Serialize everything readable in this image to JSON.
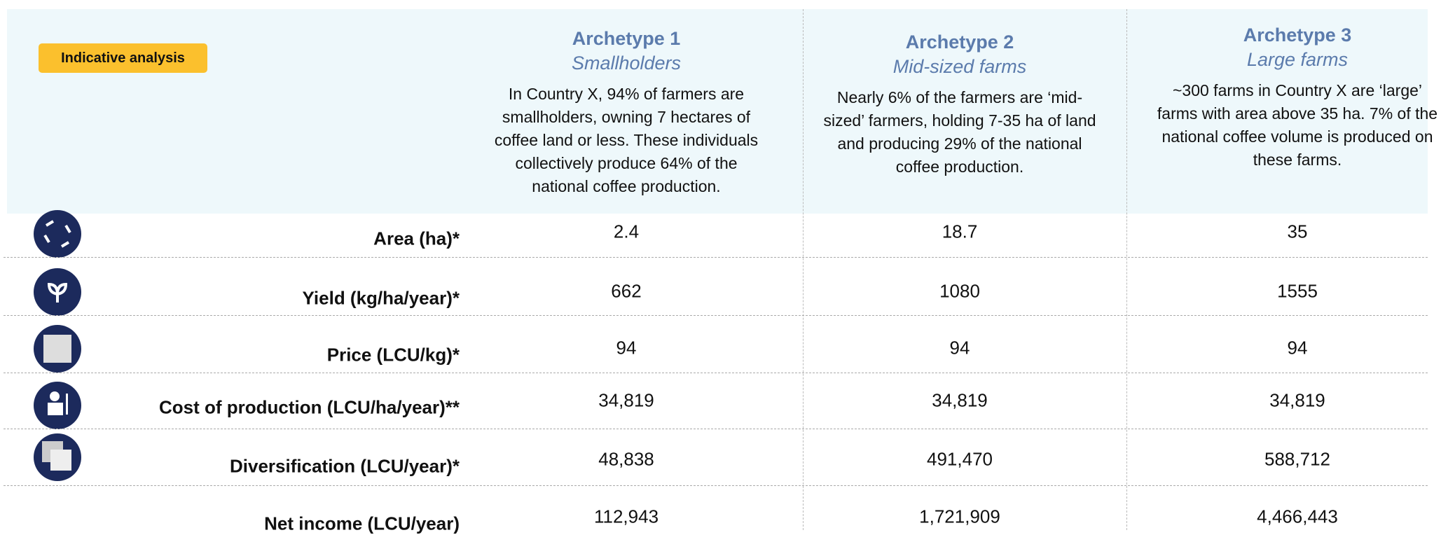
{
  "header": {
    "badge": "Indicative analysis"
  },
  "columns": [
    {
      "title": "Archetype 1",
      "subtitle": "Smallholders",
      "description": "In Country X, 94% of farmers are smallholders, owning 7 hectares of coffee land or less. These individuals collectively produce 64% of the national coffee production."
    },
    {
      "title": "Archetype 2",
      "subtitle": "Mid-sized farms",
      "description": "Nearly 6% of the farmers are ‘mid-sized’ farmers, holding 7-35 ha of land and producing 29% of the national coffee production."
    },
    {
      "title": "Archetype 3",
      "subtitle": "Large farms",
      "description": "~300 farms in Country X are ‘large’ farms with area above 35 ha. 7% of the national coffee volume is produced on these farms."
    }
  ],
  "rows": [
    {
      "label": "Area (ha)*",
      "values": [
        "2.4",
        "18.7",
        "35"
      ]
    },
    {
      "label": "Yield (kg/ha/year)*",
      "values": [
        "662",
        "1080",
        "1555"
      ]
    },
    {
      "label": "Price (LCU/kg)*",
      "values": [
        "94",
        "94",
        "94"
      ]
    },
    {
      "label": "Cost of production (LCU/ha/year)**",
      "values": [
        "34,819",
        "34,819",
        "34,819"
      ]
    },
    {
      "label": "Diversification (LCU/year)*",
      "values": [
        "48,838",
        "491,470",
        "588,712"
      ]
    },
    {
      "label": "Net income (LCU/year)",
      "values": [
        "112,943",
        "1,721,909",
        "4,466,443"
      ]
    }
  ]
}
